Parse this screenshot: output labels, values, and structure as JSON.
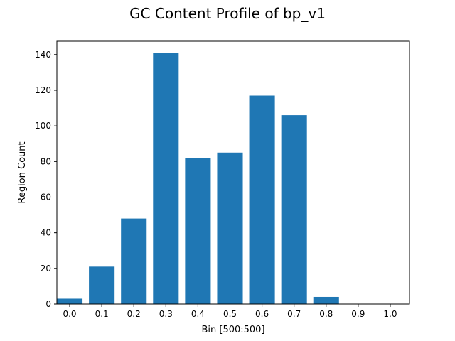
{
  "chart_data": {
    "type": "bar",
    "title": "GC Content Profile of bp_v1",
    "xlabel": "Bin [500:500]",
    "ylabel": "Region Count",
    "bin_width": 0.1,
    "x": [
      0.0,
      0.1,
      0.2,
      0.3,
      0.4,
      0.5,
      0.6,
      0.7,
      0.8,
      0.9
    ],
    "values": [
      3,
      21,
      48,
      141,
      82,
      85,
      117,
      106,
      4,
      0
    ],
    "xlim": [
      -0.04,
      1.06
    ],
    "ylim": [
      0,
      147.5
    ],
    "xticks": [
      "0.0",
      "0.1",
      "0.2",
      "0.3",
      "0.4",
      "0.5",
      "0.6",
      "0.7",
      "0.8",
      "0.9",
      "1.0"
    ],
    "yticks": [
      "0",
      "20",
      "40",
      "60",
      "80",
      "100",
      "120",
      "140"
    ],
    "bar_color": "#1f77b4",
    "grid": false,
    "legend": "none"
  }
}
